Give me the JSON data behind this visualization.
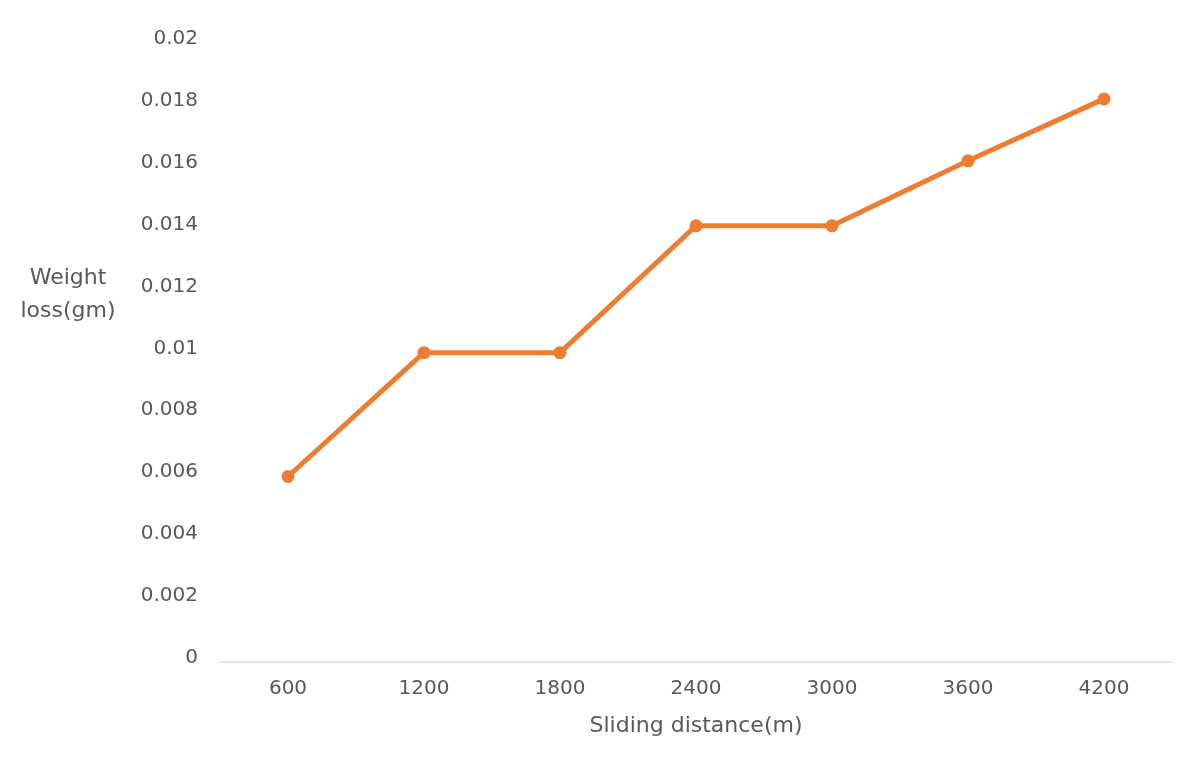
{
  "chart_data": {
    "type": "line",
    "xlabel": "Sliding distance(m)",
    "ylabel": "Weight loss(gm)",
    "categories": [
      "600",
      "1200",
      "1800",
      "2400",
      "3000",
      "3600",
      "4200"
    ],
    "series": [
      {
        "color": "#ed7d31",
        "values": [
          0.0058,
          0.0098,
          0.0098,
          0.0139,
          0.0139,
          0.016,
          0.018
        ]
      }
    ],
    "ylim": [
      0,
      0.02
    ],
    "yticks": [
      0,
      0.002,
      0.004,
      0.006,
      0.008,
      0.01,
      0.012,
      0.014,
      0.016,
      0.018,
      0.02
    ],
    "grid": false,
    "marker": "circle",
    "line_style": "solid"
  }
}
